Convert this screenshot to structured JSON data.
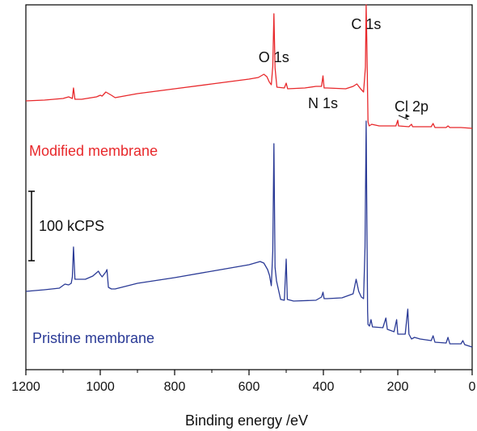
{
  "chart_data": {
    "type": "line",
    "title": "",
    "xlabel": "Binding energy /eV",
    "ylabel": "",
    "xlim": [
      1200,
      0
    ],
    "x_reversed": true,
    "x_ticks": [
      1200,
      1000,
      800,
      600,
      400,
      200,
      0
    ],
    "y_ticks_visible": false,
    "grid": false,
    "scale_bar": {
      "label": "100 kCPS",
      "magnitude": 100,
      "units": "kCPS"
    },
    "series": [
      {
        "name": "Modified membrane",
        "color": "#e8282b",
        "points": [
          [
            1200,
            119
          ],
          [
            1150,
            118
          ],
          [
            1100,
            116
          ],
          [
            1085,
            114
          ],
          [
            1075,
            116
          ],
          [
            1072,
            103
          ],
          [
            1068,
            117
          ],
          [
            1050,
            117
          ],
          [
            1010,
            114
          ],
          [
            1000,
            112
          ],
          [
            995,
            113
          ],
          [
            985,
            108
          ],
          [
            970,
            112
          ],
          [
            960,
            115
          ],
          [
            900,
            110
          ],
          [
            800,
            104
          ],
          [
            700,
            98
          ],
          [
            600,
            92
          ],
          [
            575,
            90
          ],
          [
            560,
            86
          ],
          [
            552,
            89
          ],
          [
            545,
            96
          ],
          [
            540,
            99
          ],
          [
            536,
            76
          ],
          [
            533,
            11
          ],
          [
            530,
            78
          ],
          [
            525,
            102
          ],
          [
            505,
            103
          ],
          [
            500,
            97
          ],
          [
            496,
            104
          ],
          [
            450,
            103
          ],
          [
            420,
            101
          ],
          [
            405,
            101
          ],
          [
            401,
            88
          ],
          [
            398,
            103
          ],
          [
            390,
            103
          ],
          [
            340,
            104
          ],
          [
            320,
            101
          ],
          [
            310,
            98
          ],
          [
            300,
            104
          ],
          [
            292,
            108
          ],
          [
            287,
            77
          ],
          [
            285,
            0
          ],
          [
            283,
            50
          ],
          [
            280,
            145
          ],
          [
            277,
            150
          ],
          [
            270,
            148
          ],
          [
            250,
            150
          ],
          [
            210,
            150
          ],
          [
            205,
            150
          ],
          [
            200,
            143
          ],
          [
            198,
            150
          ],
          [
            170,
            151
          ],
          [
            163,
            148
          ],
          [
            160,
            151
          ],
          [
            110,
            151
          ],
          [
            105,
            147
          ],
          [
            100,
            152
          ],
          [
            70,
            152
          ],
          [
            65,
            150
          ],
          [
            60,
            152
          ],
          [
            30,
            152
          ],
          [
            0,
            153
          ]
        ]
      },
      {
        "name": "Pristine membrane",
        "color": "#2a3a96",
        "points": [
          [
            1200,
            355
          ],
          [
            1150,
            353
          ],
          [
            1110,
            351
          ],
          [
            1095,
            346
          ],
          [
            1085,
            347
          ],
          [
            1078,
            345
          ],
          [
            1075,
            337
          ],
          [
            1072,
            300
          ],
          [
            1068,
            340
          ],
          [
            1040,
            340
          ],
          [
            1020,
            336
          ],
          [
            1005,
            330
          ],
          [
            1000,
            334
          ],
          [
            995,
            337
          ],
          [
            985,
            331
          ],
          [
            982,
            328
          ],
          [
            978,
            350
          ],
          [
            970,
            352
          ],
          [
            960,
            352
          ],
          [
            900,
            345
          ],
          [
            800,
            338
          ],
          [
            700,
            330
          ],
          [
            600,
            322
          ],
          [
            570,
            318
          ],
          [
            560,
            320
          ],
          [
            550,
            328
          ],
          [
            545,
            335
          ],
          [
            540,
            348
          ],
          [
            536,
            305
          ],
          [
            533,
            172
          ],
          [
            530,
            325
          ],
          [
            526,
            342
          ],
          [
            515,
            365
          ],
          [
            505,
            366
          ],
          [
            500,
            315
          ],
          [
            497,
            365
          ],
          [
            480,
            367
          ],
          [
            420,
            366
          ],
          [
            405,
            362
          ],
          [
            401,
            356
          ],
          [
            398,
            364
          ],
          [
            390,
            364
          ],
          [
            350,
            363
          ],
          [
            320,
            358
          ],
          [
            312,
            340
          ],
          [
            305,
            355
          ],
          [
            298,
            362
          ],
          [
            292,
            364
          ],
          [
            288,
            300
          ],
          [
            285,
            144
          ],
          [
            283,
            270
          ],
          [
            281,
            380
          ],
          [
            280,
            396
          ],
          [
            276,
            398
          ],
          [
            272,
            390
          ],
          [
            268,
            399
          ],
          [
            240,
            400
          ],
          [
            232,
            388
          ],
          [
            228,
            402
          ],
          [
            210,
            405
          ],
          [
            203,
            390
          ],
          [
            200,
            408
          ],
          [
            180,
            408
          ],
          [
            173,
            377
          ],
          [
            170,
            408
          ],
          [
            163,
            414
          ],
          [
            155,
            412
          ],
          [
            140,
            414
          ],
          [
            110,
            416
          ],
          [
            105,
            410
          ],
          [
            100,
            418
          ],
          [
            70,
            419
          ],
          [
            65,
            412
          ],
          [
            60,
            420
          ],
          [
            30,
            420
          ],
          [
            25,
            416
          ],
          [
            20,
            421
          ],
          [
            0,
            424
          ]
        ]
      }
    ],
    "annotations": [
      {
        "id": "o1s",
        "text": "O 1s",
        "x": 533
      },
      {
        "id": "n1s",
        "text": "N 1s",
        "x": 401
      },
      {
        "id": "c1s",
        "text": "C 1s",
        "x": 285
      },
      {
        "id": "cl2p",
        "text": "Cl 2p",
        "x": 200,
        "arrow": true
      }
    ]
  }
}
